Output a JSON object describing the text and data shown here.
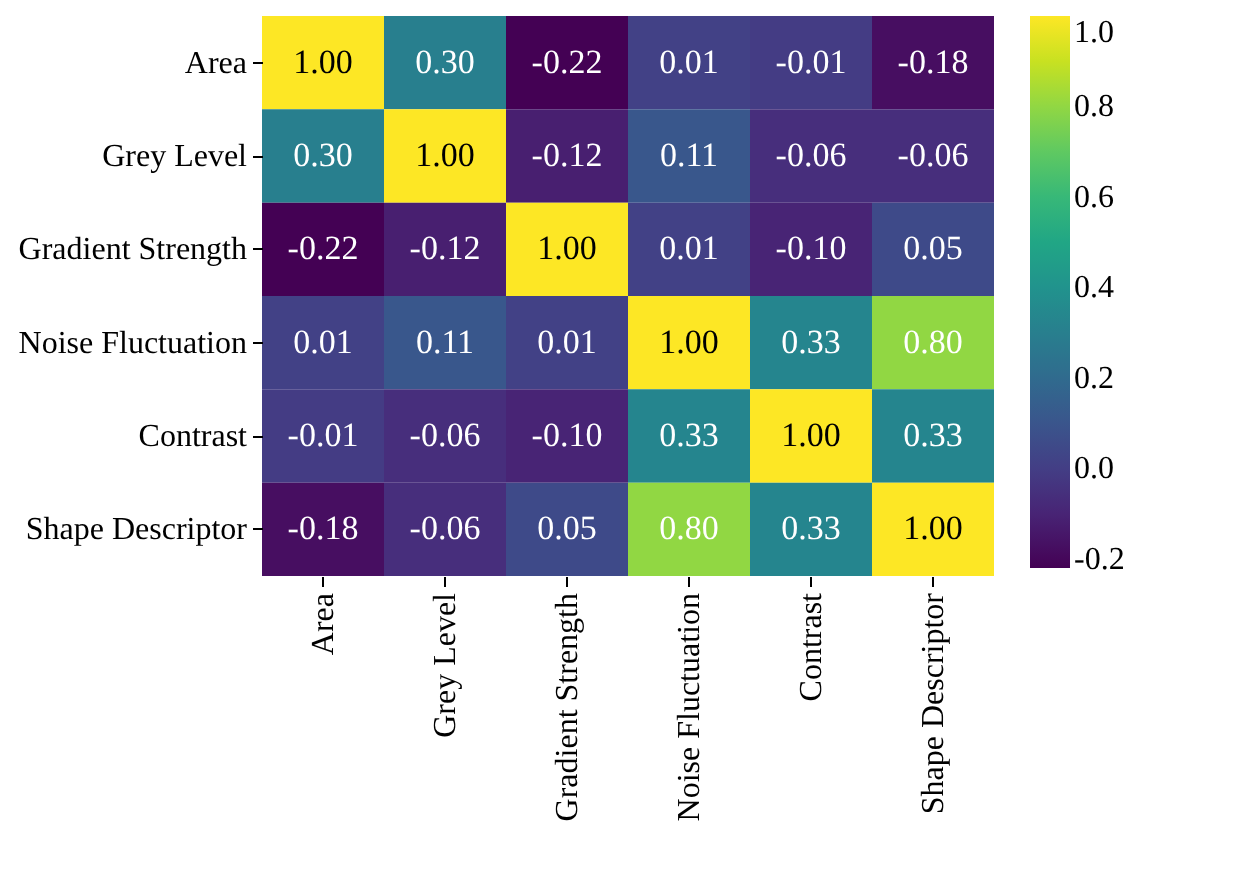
{
  "chart_data": {
    "type": "heatmap",
    "categories": [
      "Area",
      "Grey Level",
      "Gradient Strength",
      "Noise Fluctuation",
      "Contrast",
      "Shape Descriptor"
    ],
    "y_categories": [
      "Area",
      "Grey Level",
      "Gradient Strength",
      "Noise Fluctuation",
      "Contrast",
      "Shape Descriptor"
    ],
    "cells": [
      [
        1.0,
        0.3,
        -0.22,
        0.01,
        -0.01,
        -0.18
      ],
      [
        0.3,
        1.0,
        -0.12,
        0.11,
        -0.06,
        -0.06
      ],
      [
        -0.22,
        -0.12,
        1.0,
        0.01,
        -0.1,
        0.05
      ],
      [
        0.01,
        0.11,
        0.01,
        1.0,
        0.33,
        0.8
      ],
      [
        -0.01,
        -0.06,
        -0.1,
        0.33,
        1.0,
        0.33
      ],
      [
        -0.18,
        -0.06,
        0.05,
        0.8,
        0.33,
        1.0
      ]
    ],
    "cell_labels": [
      [
        "1.00",
        "0.30",
        "-0.22",
        "0.01",
        "-0.01",
        "-0.18"
      ],
      [
        "0.30",
        "1.00",
        "-0.12",
        "0.11",
        "-0.06",
        "-0.06"
      ],
      [
        "-0.22",
        "-0.12",
        "1.00",
        "0.01",
        "-0.10",
        "0.05"
      ],
      [
        "0.01",
        "0.11",
        "0.01",
        "1.00",
        "0.33",
        "0.80"
      ],
      [
        "-0.01",
        "-0.06",
        "-0.10",
        "0.33",
        "1.00",
        "0.33"
      ],
      [
        "-0.18",
        "-0.06",
        "0.05",
        "0.80",
        "0.33",
        "1.00"
      ]
    ],
    "clim": [
      -0.22,
      1.0
    ],
    "cticks": [
      {
        "value": -0.2,
        "label": "-0.2"
      },
      {
        "value": 0,
        "label": "0.0"
      },
      0.2,
      0.4,
      0.6,
      0.8,
      {
        "value": 1,
        "label": "1.0"
      }
    ]
  }
}
